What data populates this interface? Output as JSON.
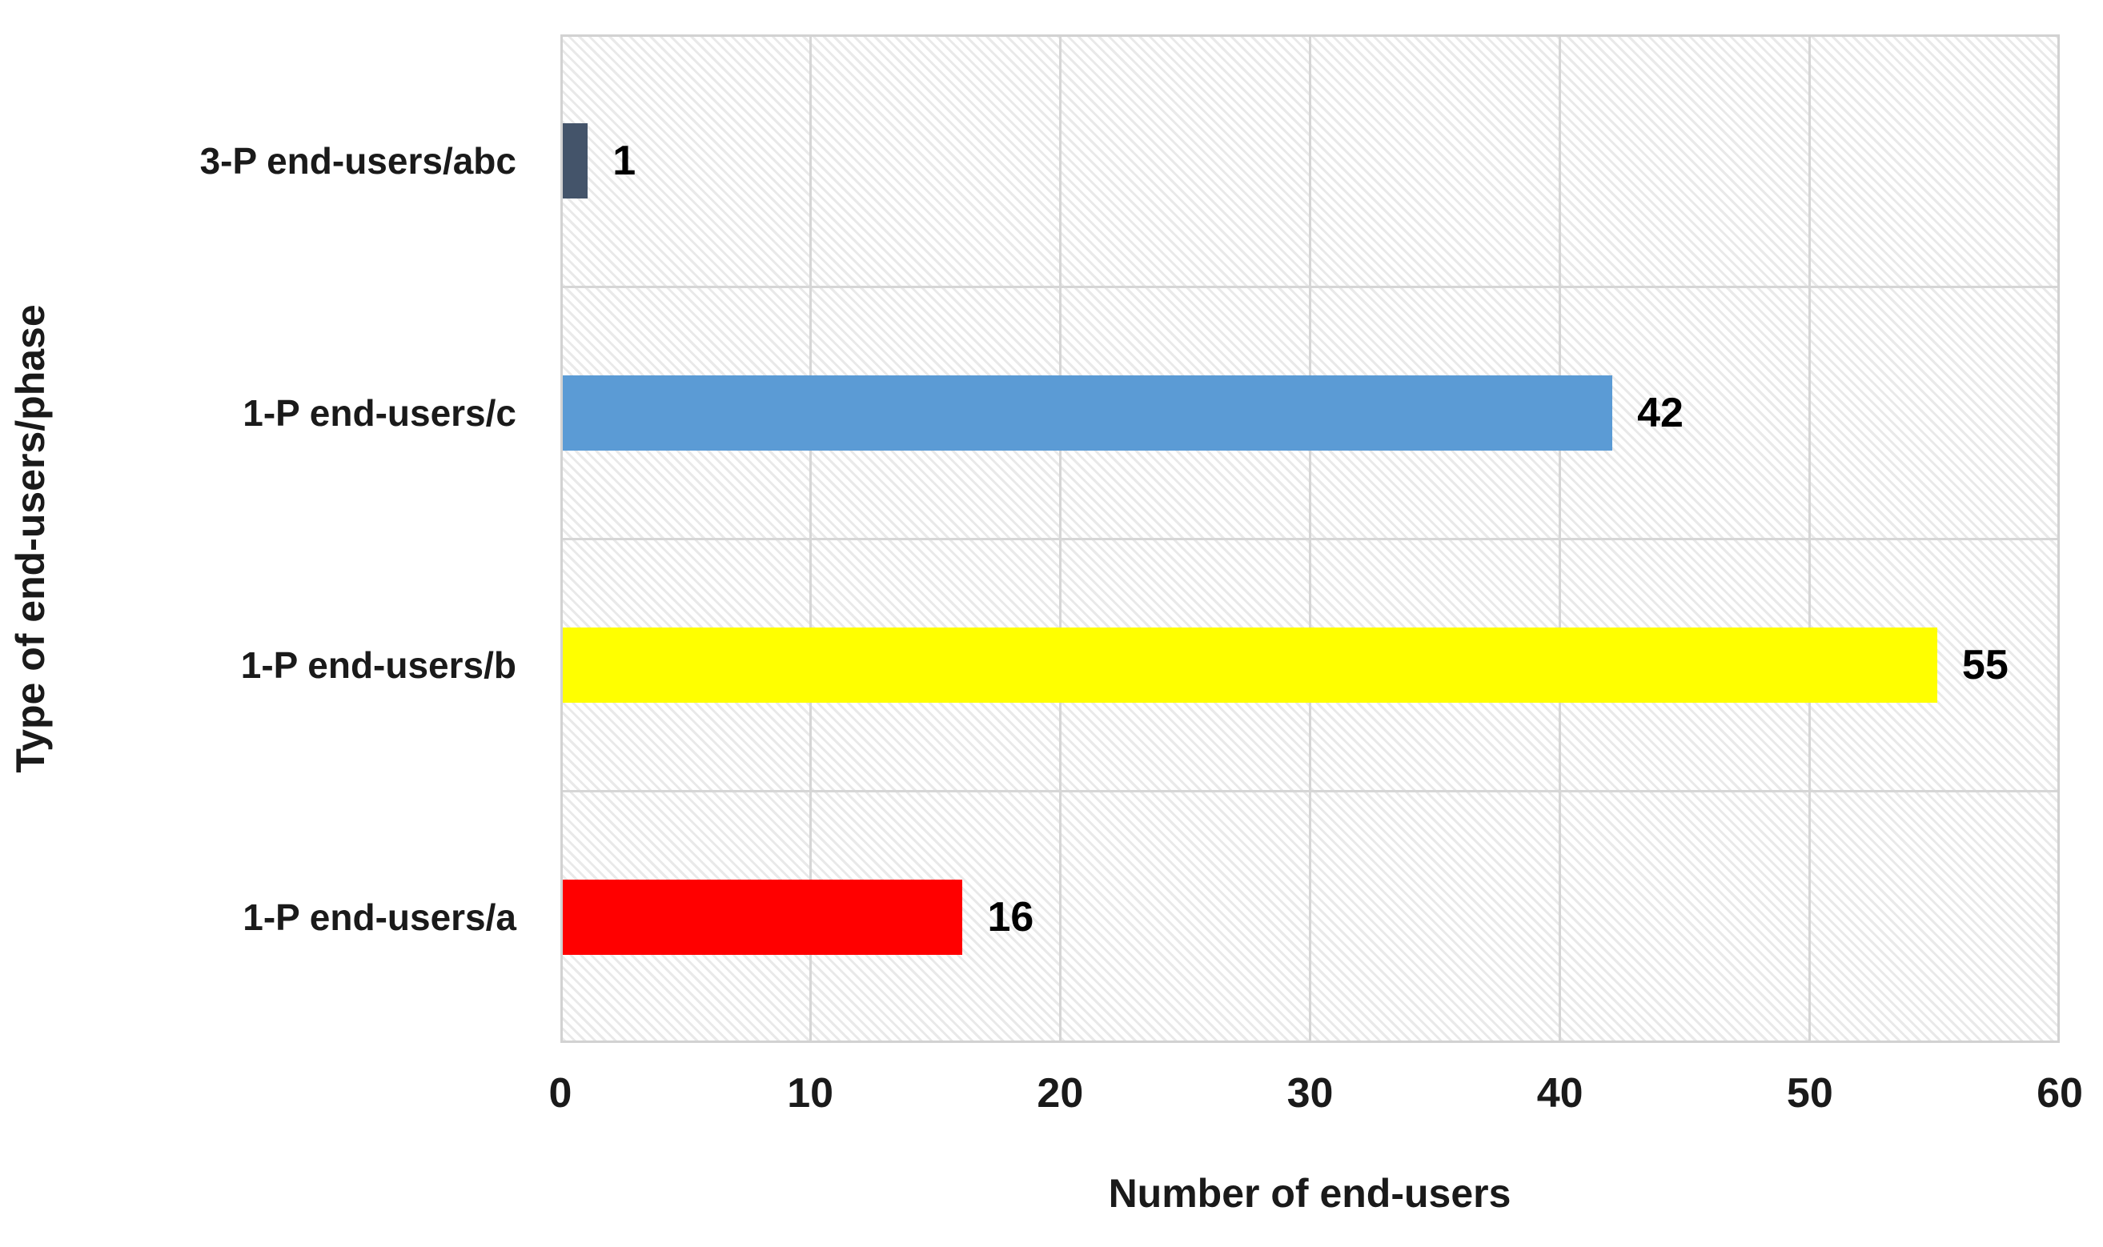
{
  "chart_data": {
    "type": "bar",
    "orientation": "horizontal",
    "title": "",
    "xlabel": "Number of end-users",
    "ylabel": "Type of end-users/phase",
    "xlim": [
      0,
      60
    ],
    "xticks": [
      0,
      10,
      20,
      30,
      40,
      50,
      60
    ],
    "grid": true,
    "legend": "none",
    "background_pattern": "light-downward-diagonal-hatch",
    "rows_top_to_bottom": [
      {
        "label": "3-P end-users/abc",
        "value": 1,
        "value_label": "1",
        "color": "#44546A"
      },
      {
        "label": "1-P end-users/c",
        "value": 42,
        "value_label": "42",
        "color": "#5B9BD5"
      },
      {
        "label": "1-P end-users/b",
        "value": 55,
        "value_label": "55",
        "color": "#FFFF00"
      },
      {
        "label": "1-P end-users/a",
        "value": 16,
        "value_label": "16",
        "color": "#FF0000"
      }
    ]
  },
  "colors": {
    "gridline": "#D6D6D6",
    "plot_border": "#D2D2D2",
    "hatch_stripe": "#E9E9E9",
    "text": "#1A1A1A",
    "background": "#FFFFFF"
  }
}
